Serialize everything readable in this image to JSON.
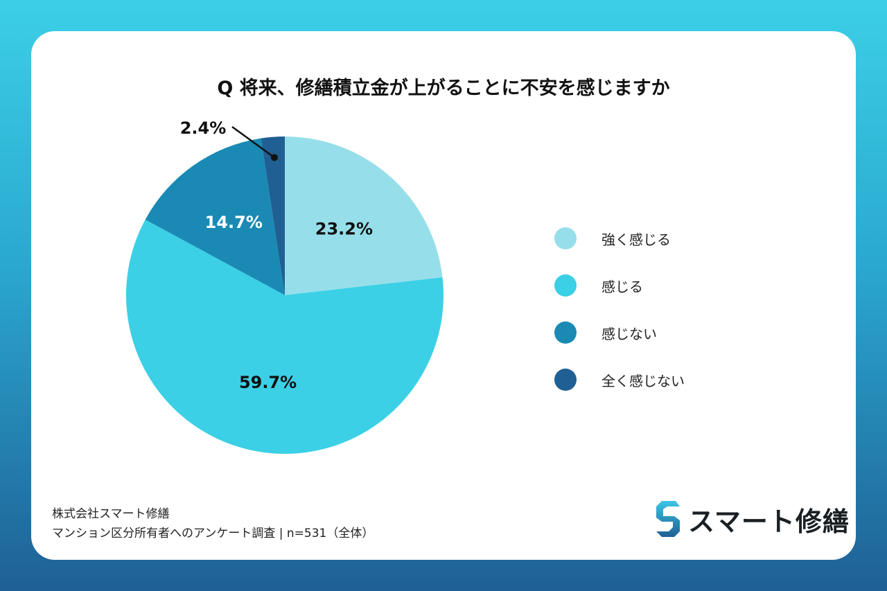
{
  "chart_data": {
    "type": "pie",
    "title": "Q 将来、修繕積立金が上がることに不安を感じますか",
    "start_angle": "top",
    "direction": "clockwise",
    "slices": [
      {
        "label": "強く感じる",
        "value": 23.2,
        "display": "23.2%",
        "color": "#96dfea",
        "label_color": "#111111"
      },
      {
        "label": "感じる",
        "value": 59.7,
        "display": "59.7%",
        "color": "#3bd0e6",
        "label_color": "#111111"
      },
      {
        "label": "感じない",
        "value": 14.7,
        "display": "14.7%",
        "color": "#1a8ab5",
        "label_color": "#ffffff"
      },
      {
        "label": "全く感じない",
        "value": 2.4,
        "display": "2.4%",
        "color": "#1f5f93",
        "label_color": "#111111",
        "callout": true
      }
    ],
    "legend_placement": "right"
  },
  "footer": {
    "line1": "株式会社スマート修繕",
    "line2": "マンション区分所有者へのアンケート調査 | n=531（全体）"
  },
  "logo": {
    "text": "スマート修繕"
  }
}
